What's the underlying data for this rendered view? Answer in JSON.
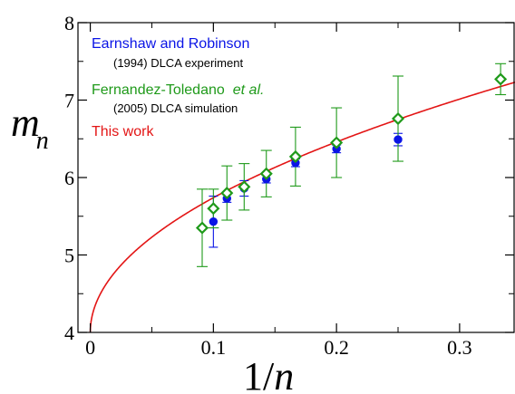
{
  "chart_data": {
    "type": "scatter",
    "title": "",
    "xlabel_main": "1/",
    "xlabel_var": "n",
    "ylabel_main": "m",
    "ylabel_sub": "n",
    "xlim": [
      -0.01,
      0.345
    ],
    "ylim": [
      4.0,
      8.0
    ],
    "x_ticks": [
      0,
      0.1,
      0.2,
      0.3
    ],
    "x_tick_labels": [
      "0",
      "0.1",
      "0.2",
      "0.3"
    ],
    "y_ticks": [
      4,
      5,
      6,
      7,
      8
    ],
    "y_tick_labels": [
      "4",
      "5",
      "6",
      "7",
      "8"
    ],
    "x_minor_step": 0.05,
    "y_minor_step": 0.5,
    "grid": false,
    "legend_position": "top-left",
    "series": [
      {
        "name": "Earnshaw and Robinson",
        "name_line2": "(1994) DLCA experiment",
        "marker": "filled-circle",
        "color": "#0a14e6",
        "points": [
          {
            "x": 0.1,
            "y": 5.43,
            "err": 0.33
          },
          {
            "x": 0.111,
            "y": 5.73,
            "err": 0.05
          },
          {
            "x": 0.125,
            "y": 5.86,
            "err": 0.1
          },
          {
            "x": 0.143,
            "y": 5.98,
            "err": 0.05
          },
          {
            "x": 0.1667,
            "y": 6.19,
            "err": 0.05
          },
          {
            "x": 0.2,
            "y": 6.37,
            "err": 0.05
          },
          {
            "x": 0.25,
            "y": 6.49,
            "err": 0.08
          }
        ]
      },
      {
        "name": "Fernandez-Toledano",
        "name_suffix": "et al.",
        "name_line2": "(2005) DLCA simulation",
        "marker": "open-diamond",
        "color": "#1f9a1a",
        "points": [
          {
            "x": 0.0909,
            "y": 5.35,
            "err": 0.5
          },
          {
            "x": 0.1,
            "y": 5.6,
            "err": 0.25
          },
          {
            "x": 0.111,
            "y": 5.8,
            "err": 0.35
          },
          {
            "x": 0.125,
            "y": 5.88,
            "err": 0.3
          },
          {
            "x": 0.143,
            "y": 6.05,
            "err": 0.3
          },
          {
            "x": 0.1667,
            "y": 6.27,
            "err": 0.38
          },
          {
            "x": 0.2,
            "y": 6.45,
            "err": 0.45
          },
          {
            "x": 0.25,
            "y": 6.76,
            "err": 0.55
          },
          {
            "x": 0.3333,
            "y": 7.27,
            "err": 0.2
          }
        ]
      },
      {
        "name": "This work",
        "marker": "line",
        "color": "#e31515",
        "curve": {
          "form": "power",
          "a": 4.0,
          "b": 5.5,
          "p": 0.5,
          "x_from": 0.0,
          "x_to": 0.345
        }
      }
    ]
  }
}
